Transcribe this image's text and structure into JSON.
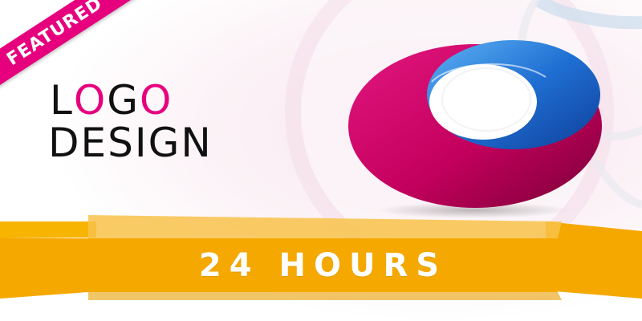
{
  "ribbon": {
    "label": "FEATURED",
    "color": "#e6007e"
  },
  "heading": {
    "line1_letters": [
      "L",
      "O",
      "G",
      "O"
    ],
    "line1_colors": [
      "#111111",
      "#e6007e",
      "#111111",
      "#e6007e"
    ],
    "line2": "DESIGN"
  },
  "banner": {
    "label": "24 HOURS",
    "color": "#f5a800"
  },
  "logo_mark": {
    "name": "o-ring-logo-icon",
    "outer_color": "#c2005f",
    "inner_color": "#1e6fd0"
  }
}
